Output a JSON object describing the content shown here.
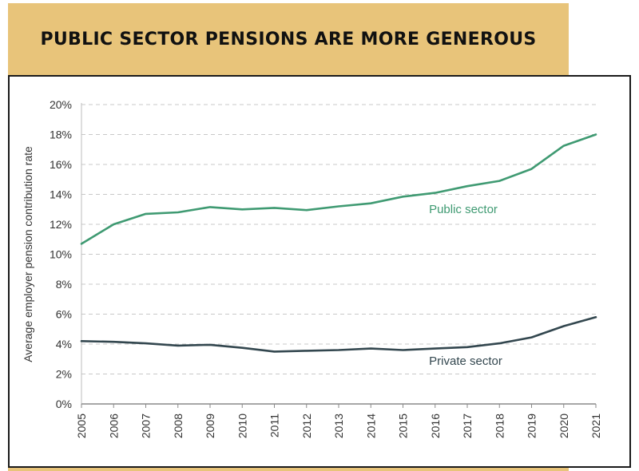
{
  "header": {
    "title": "PUBLIC SECTOR PENSIONS ARE MORE GENEROUS"
  },
  "colors": {
    "banner": "#e8c47a",
    "public": "#3f9a72",
    "private": "#33474f",
    "grid": "#c8c8c8"
  },
  "chart_data": {
    "type": "line",
    "title": "",
    "xlabel": "",
    "ylabel": "Average employer pension contribution rate",
    "x": [
      "2005",
      "2006",
      "2007",
      "2008",
      "2009",
      "2010",
      "2011",
      "2012",
      "2013",
      "2014",
      "2015",
      "2016",
      "2017",
      "2018",
      "2019",
      "2020",
      "2021"
    ],
    "ylim": [
      0,
      20
    ],
    "yticks": [
      "0%",
      "2%",
      "4%",
      "6%",
      "8%",
      "10%",
      "12%",
      "14%",
      "16%",
      "18%",
      "20%"
    ],
    "grid": true,
    "legend": "inline labels",
    "series": [
      {
        "name": "Public sector",
        "color": "#3f9a72",
        "values": [
          10.7,
          12.0,
          12.7,
          12.8,
          13.15,
          13.0,
          13.1,
          12.95,
          13.2,
          13.4,
          13.85,
          14.1,
          14.55,
          14.9,
          15.7,
          17.25,
          18.0
        ]
      },
      {
        "name": "Private sector",
        "color": "#33474f",
        "values": [
          4.2,
          4.15,
          4.05,
          3.9,
          3.95,
          3.75,
          3.5,
          3.55,
          3.6,
          3.7,
          3.6,
          3.7,
          3.8,
          4.05,
          4.45,
          5.2,
          5.8
        ]
      }
    ]
  }
}
